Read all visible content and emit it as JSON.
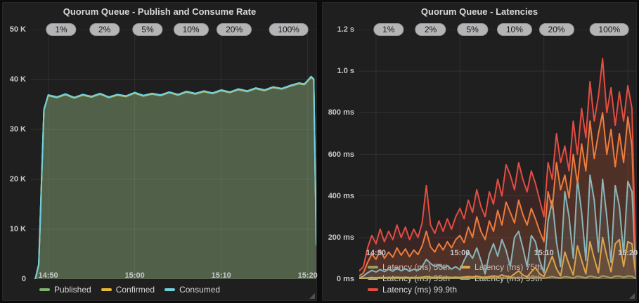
{
  "page": {
    "background": "#0c0c0d",
    "panel_background": "#1f1f20",
    "grid_color": "rgba(255,255,255,0.08)",
    "axis_text_color": "#c7c8ca",
    "annotation_pill_bg": "#b5b5b7"
  },
  "chart_data": [
    {
      "type": "area",
      "title": "Quorum Queue - Publish and Consume Rate",
      "xlabel": "",
      "ylabel": "",
      "x_range_minutes": [
        0,
        33
      ],
      "ylim": [
        0,
        50000
      ],
      "fill_opacity": 0.16,
      "line_width": 2,
      "grid": true,
      "legend_position": "bottom",
      "x_ticks": {
        "minutes": [
          2,
          12,
          22,
          32
        ],
        "labels": [
          "14:50",
          "15:00",
          "15:10",
          "15:20"
        ]
      },
      "y_ticks": {
        "values": [
          0,
          10000,
          20000,
          30000,
          40000,
          50000
        ],
        "labels": [
          "0",
          "10 K",
          "20 K",
          "30 K",
          "40 K",
          "50 K"
        ]
      },
      "annotations": {
        "labels": [
          "1%",
          "2%",
          "5%",
          "10%",
          "20%",
          "100%"
        ],
        "x_minutes": [
          3.5,
          8.5,
          13.5,
          18.5,
          23.5,
          29.8
        ]
      },
      "x_minutes": [
        0.5,
        0.9,
        1.5,
        2,
        3,
        4,
        5,
        6,
        7,
        8,
        9,
        10,
        11,
        12,
        13,
        14,
        15,
        16,
        17,
        18,
        19,
        20,
        21,
        22,
        23,
        24,
        25,
        26,
        27,
        28,
        29,
        30,
        31,
        31.6,
        32,
        32.4,
        32.7,
        33
      ],
      "series": [
        {
          "name": "Published",
          "color": "#7EB26D",
          "values": [
            0,
            2800,
            33800,
            36750,
            36350,
            36950,
            36250,
            36850,
            36450,
            37050,
            36350,
            36850,
            36550,
            37250,
            36650,
            37050,
            36750,
            37350,
            36850,
            37450,
            37050,
            37550,
            37150,
            37750,
            37350,
            37950,
            37550,
            38150,
            37750,
            38350,
            38050,
            38650,
            39150,
            38950,
            39650,
            40450,
            39950,
            6800
          ]
        },
        {
          "name": "Confirmed",
          "color": "#EAB839",
          "values": [
            0,
            2900,
            33900,
            36820,
            36420,
            37020,
            36320,
            36920,
            36520,
            37120,
            36420,
            36920,
            36620,
            37320,
            36720,
            37120,
            36820,
            37420,
            36920,
            37520,
            37120,
            37620,
            37220,
            37820,
            37420,
            38020,
            37620,
            38220,
            37820,
            38420,
            38120,
            38720,
            39220,
            39020,
            39720,
            40520,
            40020,
            6900
          ]
        },
        {
          "name": "Consumed",
          "color": "#6ED0E0",
          "values": [
            0,
            3000,
            34000,
            36900,
            36500,
            37100,
            36400,
            37000,
            36600,
            37200,
            36500,
            37000,
            36700,
            37400,
            36800,
            37200,
            36900,
            37500,
            37000,
            37600,
            37200,
            37700,
            37300,
            37900,
            37500,
            38100,
            37700,
            38300,
            37900,
            38500,
            38200,
            38800,
            39300,
            39100,
            39800,
            40600,
            40100,
            7000
          ]
        }
      ]
    },
    {
      "type": "area",
      "title": "Quorum Queue - Latencies",
      "xlabel": "",
      "ylabel": "",
      "x_range_minutes": [
        0,
        33
      ],
      "ylim": [
        0,
        1200
      ],
      "fill_opacity": 0.13,
      "line_width": 2,
      "grid": true,
      "legend_position": "bottom",
      "x_ticks": {
        "minutes": [
          2,
          12,
          22,
          32
        ],
        "labels": [
          "14:50",
          "15:00",
          "15:10",
          "15:20"
        ]
      },
      "y_ticks": {
        "values": [
          0,
          200,
          400,
          600,
          800,
          1000,
          1200
        ],
        "labels": [
          "0 ms",
          "200 ms",
          "400 ms",
          "600 ms",
          "800 ms",
          "1.0 s",
          "1.2 s"
        ]
      },
      "annotations": {
        "labels": [
          "1%",
          "2%",
          "5%",
          "10%",
          "20%",
          "100%"
        ],
        "x_minutes": [
          3.5,
          8.5,
          13.5,
          18.5,
          23.5,
          29.8
        ]
      },
      "x_minutes": [
        0,
        0.5,
        1,
        1.5,
        2,
        2.5,
        3,
        3.5,
        4,
        4.5,
        5,
        5.5,
        6,
        6.5,
        7,
        7.5,
        8,
        8.5,
        9,
        9.5,
        10,
        10.5,
        11,
        11.5,
        12,
        12.5,
        13,
        13.5,
        14,
        14.5,
        15,
        15.5,
        16,
        16.5,
        17,
        17.5,
        18,
        18.5,
        19,
        19.5,
        20,
        20.5,
        21,
        21.5,
        22,
        22.5,
        23,
        23.5,
        24,
        24.5,
        25,
        25.5,
        26,
        26.5,
        27,
        27.5,
        28,
        28.5,
        29,
        29.5,
        30,
        30.5,
        31,
        31.5,
        32,
        32.5,
        33
      ],
      "series": [
        {
          "name": "Latency (ms) 50th",
          "color": "#7EB26D",
          "values": [
            1,
            2,
            2,
            3,
            2,
            3,
            2,
            3,
            2,
            3,
            3,
            3,
            3,
            3,
            3,
            3,
            4,
            3,
            3,
            3,
            3,
            4,
            3,
            4,
            3,
            4,
            4,
            4,
            5,
            4,
            3,
            4,
            5,
            4,
            6,
            5,
            4,
            6,
            8,
            5,
            4,
            7,
            9,
            6,
            4,
            8,
            12,
            7,
            5,
            12,
            9,
            5,
            14,
            10,
            6,
            15,
            10,
            6,
            16,
            11,
            6,
            14,
            15,
            8,
            15,
            14,
            1
          ]
        },
        {
          "name": "Latency (ms) 75th",
          "color": "#EAB839",
          "values": [
            3,
            5,
            6,
            8,
            6,
            8,
            7,
            8,
            7,
            9,
            7,
            9,
            7,
            8,
            7,
            9,
            12,
            9,
            8,
            9,
            8,
            9,
            8,
            9,
            8,
            10,
            12,
            10,
            14,
            10,
            8,
            12,
            16,
            12,
            20,
            14,
            10,
            25,
            40,
            20,
            10,
            35,
            55,
            25,
            12,
            60,
            110,
            50,
            15,
            130,
            70,
            20,
            160,
            90,
            25,
            180,
            100,
            30,
            200,
            110,
            35,
            170,
            190,
            60,
            180,
            170,
            2
          ]
        },
        {
          "name": "Latency (ms) 95th",
          "color": "#6ED0E0",
          "values": [
            5,
            15,
            30,
            42,
            34,
            46,
            36,
            48,
            38,
            52,
            40,
            50,
            38,
            48,
            42,
            60,
            95,
            75,
            60,
            70,
            52,
            64,
            48,
            60,
            45,
            90,
            130,
            100,
            150,
            90,
            25,
            120,
            170,
            110,
            190,
            140,
            60,
            200,
            230,
            150,
            60,
            210,
            180,
            90,
            30,
            280,
            380,
            180,
            60,
            420,
            300,
            100,
            480,
            320,
            90,
            500,
            380,
            130,
            480,
            300,
            80,
            450,
            350,
            120,
            470,
            420,
            3
          ]
        },
        {
          "name": "Latency (ms) 99th",
          "color": "#EF843C",
          "values": [
            15,
            30,
            80,
            120,
            95,
            140,
            100,
            130,
            105,
            150,
            115,
            145,
            108,
            140,
            118,
            160,
            230,
            155,
            130,
            170,
            140,
            180,
            150,
            190,
            210,
            175,
            250,
            200,
            300,
            230,
            190,
            280,
            230,
            330,
            260,
            370,
            320,
            270,
            380,
            310,
            260,
            340,
            290,
            230,
            180,
            420,
            340,
            560,
            430,
            500,
            390,
            600,
            460,
            650,
            520,
            760,
            580,
            700,
            800,
            600,
            720,
            540,
            700,
            560,
            780,
            640,
            4
          ]
        },
        {
          "name": "Latency (ms) 99.9th",
          "color": "#E24D42",
          "values": [
            40,
            60,
            150,
            210,
            170,
            240,
            180,
            230,
            190,
            260,
            200,
            250,
            190,
            240,
            200,
            270,
            450,
            260,
            220,
            280,
            230,
            290,
            240,
            300,
            340,
            290,
            380,
            320,
            430,
            350,
            300,
            420,
            360,
            480,
            400,
            550,
            500,
            430,
            560,
            480,
            420,
            520,
            460,
            380,
            300,
            560,
            480,
            700,
            560,
            640,
            520,
            760,
            600,
            820,
            680,
            950,
            760,
            880,
            1060,
            800,
            920,
            740,
            900,
            760,
            930,
            820,
            5
          ]
        }
      ]
    }
  ]
}
